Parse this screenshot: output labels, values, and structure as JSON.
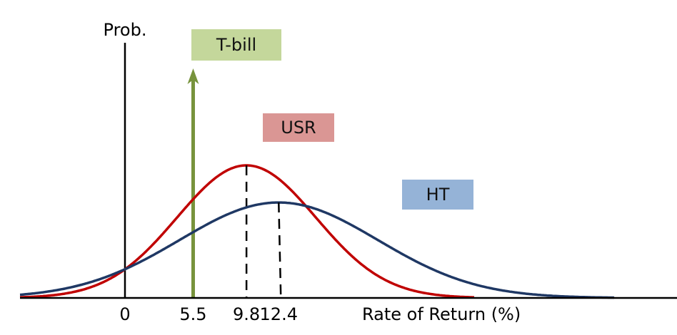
{
  "chart_data": {
    "type": "line",
    "xlabel": "Rate of Return (%)",
    "ylabel": "Prob.",
    "x_ticks": [
      0,
      5.5,
      9.8,
      12.4
    ],
    "x_tick_labels": [
      "0",
      "5.5",
      "9.8",
      "12.4"
    ],
    "xlim": [
      -9,
      40
    ],
    "grid": false,
    "series": [
      {
        "name": "T-bill",
        "kind": "point-mass",
        "mean": 5.5,
        "color": "#77933c",
        "label_bg": "#c4d79b"
      },
      {
        "name": "USR",
        "kind": "normal",
        "mean": 9.8,
        "sd": 5.6,
        "peak": 1.0,
        "color": "#c00000",
        "label_bg": "#da9694"
      },
      {
        "name": "HT",
        "kind": "normal",
        "mean": 12.4,
        "sd": 8.0,
        "peak": 0.72,
        "color": "#1f3864",
        "label_bg": "#95b3d7"
      }
    ]
  }
}
